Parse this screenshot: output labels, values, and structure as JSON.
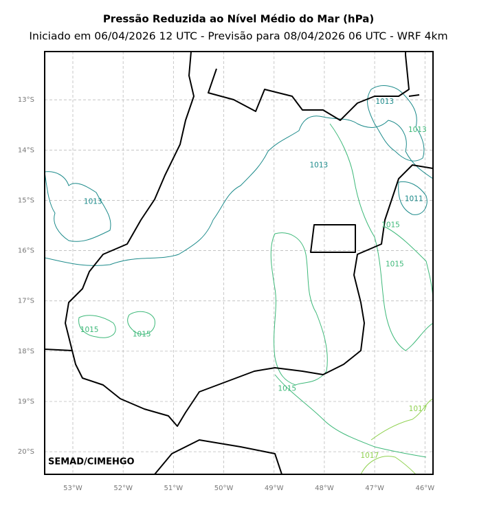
{
  "title": "Pressão Reduzida ao Nível Médio do Mar (hPa)",
  "subtitle": "Iniciado em 06/04/2026 12 UTC - Previsão para 08/04/2026 06 UTC - WRF 4km",
  "watermark": "SEMAD/CIMEHGO",
  "map": {
    "xlim": [
      -53.56,
      -45.84
    ],
    "ylim": [
      -20.45,
      -12.04
    ],
    "xticks": [
      {
        "value": -53,
        "label": "53°W"
      },
      {
        "value": -52,
        "label": "52°W"
      },
      {
        "value": -51,
        "label": "51°W"
      },
      {
        "value": -50,
        "label": "50°W"
      },
      {
        "value": -49,
        "label": "49°W"
      },
      {
        "value": -48,
        "label": "48°W"
      },
      {
        "value": -47,
        "label": "47°W"
      },
      {
        "value": -46,
        "label": "46°W"
      }
    ],
    "yticks": [
      {
        "value": -13,
        "label": "13°S"
      },
      {
        "value": -14,
        "label": "14°S"
      },
      {
        "value": -15,
        "label": "15°S"
      },
      {
        "value": -16,
        "label": "16°S"
      },
      {
        "value": -17,
        "label": "17°S"
      },
      {
        "value": -18,
        "label": "18°S"
      },
      {
        "value": -19,
        "label": "19°S"
      },
      {
        "value": -20,
        "label": "20°S"
      }
    ],
    "grid": true,
    "contour_labels": [
      {
        "text": "1013",
        "lon": -52.6,
        "lat": -15.03,
        "color": "#1b8a8a"
      },
      {
        "text": "1013",
        "lon": -48.11,
        "lat": -14.3,
        "color": "#1b8a8a"
      },
      {
        "text": "1013",
        "lon": -46.8,
        "lat": -13.04,
        "color": "#1b8a8a"
      },
      {
        "text": "1013",
        "lon": -46.15,
        "lat": -13.6,
        "color": "#3cb878"
      },
      {
        "text": "1011",
        "lon": -46.22,
        "lat": -14.97,
        "color": "#1b8a8a"
      },
      {
        "text": "1015",
        "lon": -52.67,
        "lat": -17.58,
        "color": "#3cb878"
      },
      {
        "text": "1015",
        "lon": -51.63,
        "lat": -17.67,
        "color": "#3cb878"
      },
      {
        "text": "1015",
        "lon": -46.68,
        "lat": -15.49,
        "color": "#3cb878"
      },
      {
        "text": "1015",
        "lon": -46.6,
        "lat": -16.27,
        "color": "#3cb878"
      },
      {
        "text": "1015",
        "lon": -48.74,
        "lat": -18.75,
        "color": "#3cb878"
      },
      {
        "text": "1017",
        "lon": -46.14,
        "lat": -19.15,
        "color": "#8fd14f"
      },
      {
        "text": "1017",
        "lon": -47.1,
        "lat": -20.08,
        "color": "#8fd14f"
      }
    ]
  }
}
